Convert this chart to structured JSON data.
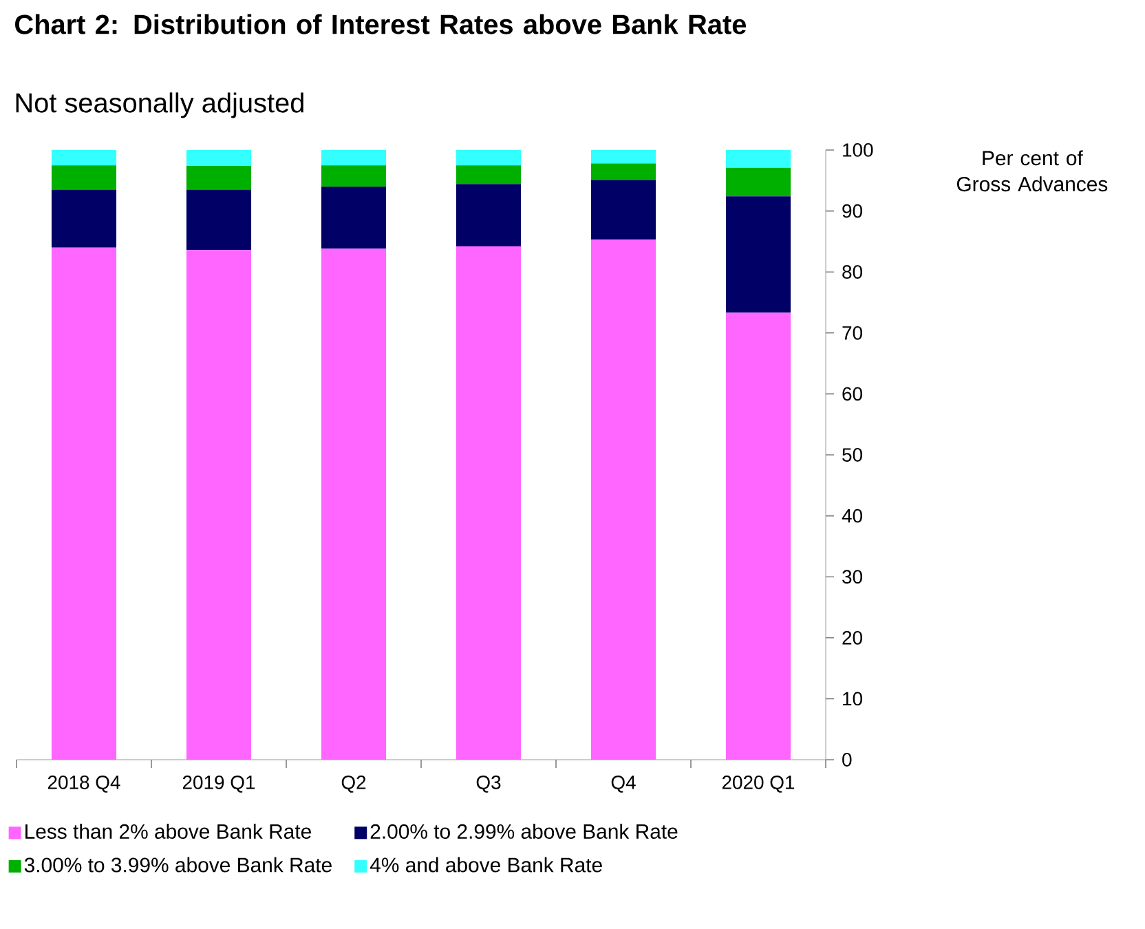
{
  "chart_data": {
    "type": "bar",
    "stacked": true,
    "title": "Chart 2: Distribution of Interest Rates above Bank Rate",
    "subtitle": "Not seasonally adjusted",
    "ylabel": "Per cent of Gross Advances",
    "categories": [
      "2018 Q4",
      "2019 Q1",
      "Q2",
      "Q3",
      "Q4",
      "2020 Q1"
    ],
    "series": [
      {
        "name": "Less than 2% above Bank Rate",
        "color": "#ff66ff",
        "values": [
          84.0,
          83.6,
          83.8,
          84.2,
          85.3,
          73.3
        ]
      },
      {
        "name": "2.00% to 2.99% above Bank Rate",
        "color": "#000066",
        "values": [
          9.5,
          9.9,
          10.2,
          10.2,
          9.8,
          19.1
        ]
      },
      {
        "name": "3.00% to 3.99% above Bank Rate",
        "color": "#00b000",
        "values": [
          4.0,
          3.9,
          3.5,
          3.1,
          2.7,
          4.7
        ]
      },
      {
        "name": "4% and above Bank Rate",
        "color": "#33ffff",
        "values": [
          2.5,
          2.6,
          2.5,
          2.5,
          2.2,
          2.9
        ]
      }
    ],
    "ylim": [
      0,
      100
    ],
    "yticks": [
      0,
      10,
      20,
      30,
      40,
      50,
      60,
      70,
      80,
      90,
      100
    ],
    "legend": "bottom"
  }
}
